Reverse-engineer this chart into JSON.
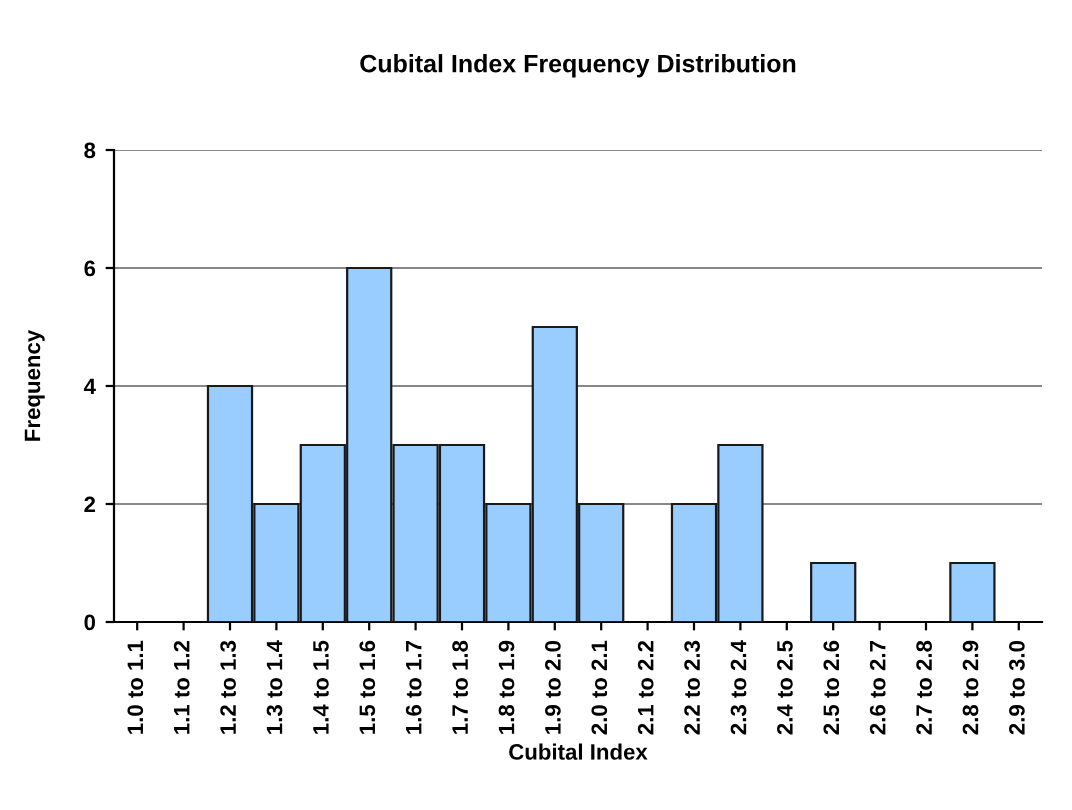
{
  "chart_data": {
    "type": "bar",
    "title": "Cubital Index Frequency Distribution",
    "xlabel": "Cubital Index",
    "ylabel": "Frequency",
    "categories": [
      "1.0 to 1.1",
      "1.1 to 1.2",
      "1.2 to 1.3",
      "1.3 to 1.4",
      "1.4 to 1.5",
      "1.5 to 1.6",
      "1.6 to 1.7",
      "1.7 to 1.8",
      "1.8 to 1.9",
      "1.9 to 2.0",
      "2.0 to 2.1",
      "2.1 to 2.2",
      "2.2 to 2.3",
      "2.3 to 2.4",
      "2.4 to 2.5",
      "2.5 to 2.6",
      "2.6 to 2.7",
      "2.7 to 2.8",
      "2.8 to 2.9",
      "2.9 to 3.0"
    ],
    "values": [
      0,
      0,
      4,
      2,
      3,
      6,
      3,
      3,
      2,
      5,
      2,
      0,
      2,
      3,
      0,
      1,
      0,
      0,
      1,
      0
    ],
    "color": "#99ccff",
    "ylim": [
      0,
      8
    ],
    "yticks": [
      0,
      2,
      4,
      6,
      8
    ],
    "grid": "y",
    "legend": false
  }
}
